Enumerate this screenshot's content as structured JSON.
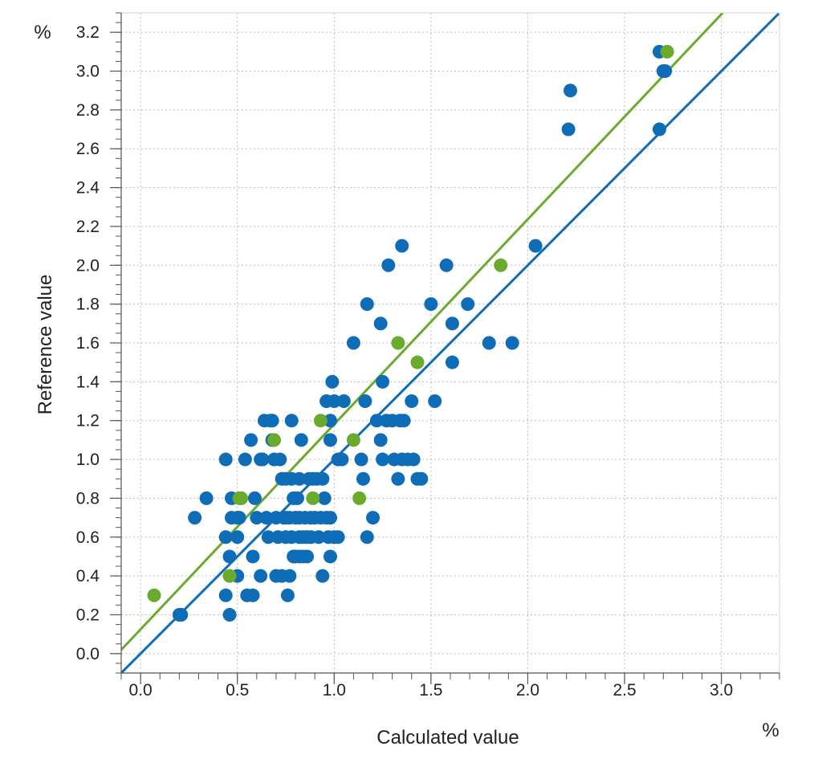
{
  "chart_data": {
    "type": "scatter",
    "title": "",
    "xlabel": "Calculated value",
    "ylabel": "Reference value",
    "x_unit": "%",
    "y_unit": "%",
    "xlim": [
      -0.1,
      3.3
    ],
    "ylim": [
      -0.1,
      3.3
    ],
    "x_ticks": [
      "0.0",
      "0.5",
      "1.0",
      "1.5",
      "2.0",
      "2.5",
      "3.0"
    ],
    "y_ticks": [
      "0.0",
      "0.2",
      "0.4",
      "0.6",
      "0.8",
      "1.0",
      "1.2",
      "1.4",
      "1.6",
      "1.8",
      "2.0",
      "2.2",
      "2.4",
      "2.6",
      "2.8",
      "3.0",
      "3.2"
    ],
    "grid": true,
    "colors": {
      "calibration": "#0f6cb6",
      "validation": "#6aab2e",
      "grid": "#bdbdbd",
      "axis": "#555555"
    },
    "series": [
      {
        "points": [
          [
            0.2,
            0.2
          ],
          [
            0.21,
            0.2
          ],
          [
            0.28,
            0.7
          ],
          [
            0.34,
            0.8
          ],
          [
            0.44,
            1.0
          ],
          [
            0.44,
            0.6
          ],
          [
            0.44,
            0.3
          ],
          [
            0.46,
            0.5
          ],
          [
            0.46,
            0.2
          ],
          [
            0.47,
            0.8
          ],
          [
            0.47,
            0.7
          ],
          [
            0.5,
            0.7
          ],
          [
            0.5,
            0.6
          ],
          [
            0.5,
            0.4
          ],
          [
            0.51,
            0.7
          ],
          [
            0.54,
            1.0
          ],
          [
            0.55,
            0.3
          ],
          [
            0.57,
            1.1
          ],
          [
            0.58,
            0.3
          ],
          [
            0.58,
            0.5
          ],
          [
            0.59,
            0.8
          ],
          [
            0.6,
            0.7
          ],
          [
            0.62,
            1.0
          ],
          [
            0.62,
            0.4
          ],
          [
            0.63,
            1.0
          ],
          [
            0.64,
            1.2
          ],
          [
            0.65,
            0.7
          ],
          [
            0.66,
            0.6
          ],
          [
            0.67,
            1.2
          ],
          [
            0.68,
            1.2
          ],
          [
            0.68,
            1.1
          ],
          [
            0.69,
            1.0
          ],
          [
            0.7,
            0.7
          ],
          [
            0.7,
            0.4
          ],
          [
            0.71,
            0.6
          ],
          [
            0.72,
            1.0
          ],
          [
            0.73,
            0.9
          ],
          [
            0.73,
            0.4
          ],
          [
            0.74,
            0.7
          ],
          [
            0.75,
            0.9
          ],
          [
            0.75,
            0.7
          ],
          [
            0.75,
            0.6
          ],
          [
            0.76,
            0.3
          ],
          [
            0.77,
            0.7
          ],
          [
            0.77,
            0.4
          ],
          [
            0.78,
            1.2
          ],
          [
            0.78,
            0.9
          ],
          [
            0.78,
            0.6
          ],
          [
            0.79,
            0.8
          ],
          [
            0.79,
            0.5
          ],
          [
            0.8,
            0.7
          ],
          [
            0.8,
            0.5
          ],
          [
            0.81,
            0.8
          ],
          [
            0.82,
            0.9
          ],
          [
            0.82,
            0.7
          ],
          [
            0.82,
            0.6
          ],
          [
            0.82,
            0.5
          ],
          [
            0.83,
            1.1
          ],
          [
            0.84,
            0.6
          ],
          [
            0.84,
            0.5
          ],
          [
            0.85,
            0.7
          ],
          [
            0.86,
            0.6
          ],
          [
            0.86,
            0.5
          ],
          [
            0.87,
            0.9
          ],
          [
            0.88,
            0.7
          ],
          [
            0.88,
            0.6
          ],
          [
            0.89,
            0.9
          ],
          [
            0.9,
            0.7
          ],
          [
            0.91,
            0.9
          ],
          [
            0.92,
            0.6
          ],
          [
            0.93,
            0.7
          ],
          [
            0.94,
            0.9
          ],
          [
            0.94,
            0.4
          ],
          [
            0.95,
            0.8
          ],
          [
            0.96,
            1.3
          ],
          [
            0.96,
            0.7
          ],
          [
            0.97,
            0.6
          ],
          [
            0.98,
            1.1
          ],
          [
            0.98,
            1.2
          ],
          [
            0.98,
            0.7
          ],
          [
            0.98,
            0.5
          ],
          [
            0.99,
            1.4
          ],
          [
            1.0,
            1.3
          ],
          [
            1.0,
            0.6
          ],
          [
            1.02,
            1.0
          ],
          [
            1.02,
            0.6
          ],
          [
            1.04,
            1.0
          ],
          [
            1.05,
            1.3
          ],
          [
            1.1,
            1.6
          ],
          [
            1.14,
            1.0
          ],
          [
            1.15,
            0.9
          ],
          [
            1.16,
            1.3
          ],
          [
            1.17,
            1.8
          ],
          [
            1.17,
            0.6
          ],
          [
            1.2,
            0.7
          ],
          [
            1.22,
            1.2
          ],
          [
            1.24,
            1.7
          ],
          [
            1.24,
            1.1
          ],
          [
            1.25,
            1.4
          ],
          [
            1.25,
            1.0
          ],
          [
            1.27,
            1.2
          ],
          [
            1.28,
            2.0
          ],
          [
            1.3,
            1.2
          ],
          [
            1.31,
            1.0
          ],
          [
            1.33,
            0.9
          ],
          [
            1.34,
            1.2
          ],
          [
            1.35,
            2.1
          ],
          [
            1.35,
            1.0
          ],
          [
            1.36,
            1.2
          ],
          [
            1.38,
            1.0
          ],
          [
            1.4,
            1.3
          ],
          [
            1.41,
            1.0
          ],
          [
            1.43,
            0.9
          ],
          [
            1.45,
            0.9
          ],
          [
            1.5,
            1.8
          ],
          [
            1.52,
            1.3
          ],
          [
            1.58,
            2.0
          ],
          [
            1.61,
            1.7
          ],
          [
            1.61,
            1.5
          ],
          [
            1.69,
            1.8
          ],
          [
            1.8,
            1.6
          ],
          [
            1.92,
            1.6
          ],
          [
            2.04,
            2.1
          ],
          [
            2.21,
            2.7
          ],
          [
            2.22,
            2.9
          ],
          [
            2.68,
            3.1
          ],
          [
            2.68,
            2.7
          ],
          [
            2.7,
            3.0
          ],
          [
            2.71,
            3.0
          ]
        ]
      },
      {
        "points": [
          [
            0.07,
            0.3
          ],
          [
            0.46,
            0.4
          ],
          [
            0.51,
            0.8
          ],
          [
            0.52,
            0.8
          ],
          [
            0.69,
            1.1
          ],
          [
            0.89,
            0.8
          ],
          [
            0.93,
            1.2
          ],
          [
            1.1,
            1.1
          ],
          [
            1.13,
            0.8
          ],
          [
            1.33,
            1.6
          ],
          [
            1.43,
            1.5
          ],
          [
            1.86,
            2.0
          ],
          [
            2.72,
            3.1
          ]
        ]
      }
    ],
    "fit_lines": [
      {
        "series_index": 0,
        "slope": 1.0,
        "intercept": 0.0
      },
      {
        "series_index": 1,
        "slope": 1.056,
        "intercept": 0.125
      }
    ]
  }
}
